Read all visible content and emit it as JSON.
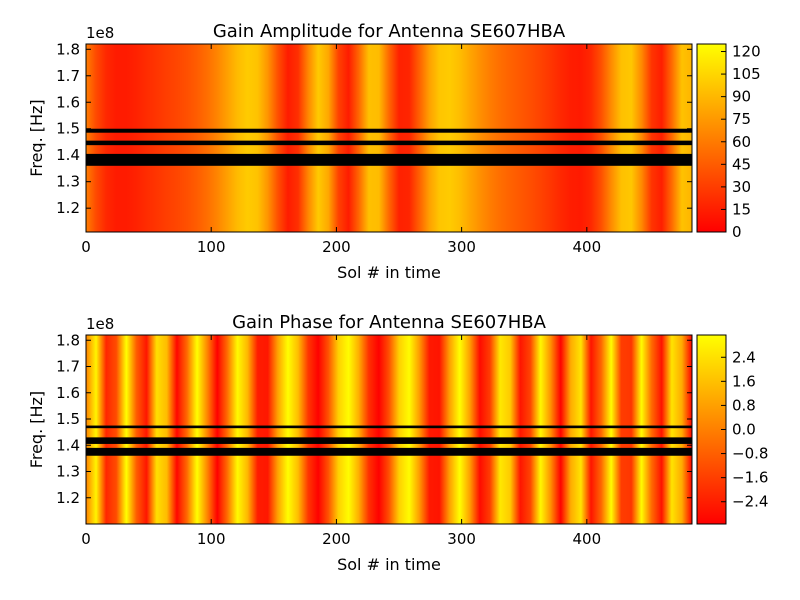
{
  "chart_data": [
    {
      "type": "heatmap",
      "title": "Gain Amplitude for Antenna SE607HBA",
      "xlabel": "Sol # in time",
      "ylabel": "Freq. [Hz]",
      "y_offset_label": "1e8",
      "xlim": [
        0,
        484
      ],
      "ylim": [
        1.11,
        1.82
      ],
      "x_ticks": [
        0,
        100,
        200,
        300,
        400
      ],
      "x_tick_labels": [
        "0",
        "100",
        "200",
        "300",
        "400"
      ],
      "y_ticks": [
        1.2,
        1.3,
        1.4,
        1.5,
        1.6,
        1.7,
        1.8
      ],
      "y_tick_labels": [
        "1.2",
        "1.3",
        "1.4",
        "1.5",
        "1.6",
        "1.7",
        "1.8"
      ],
      "colormap": "autumn",
      "colormap_stops": [
        "#ff0000",
        "#ffff00"
      ],
      "flagged_color": "#000000",
      "flagged_bands": [
        [
          1.485,
          1.5
        ],
        [
          1.438,
          1.455
        ],
        [
          1.36,
          1.405
        ]
      ],
      "clim": [
        0,
        125
      ],
      "colorbar_ticks": [
        0,
        15,
        30,
        45,
        60,
        75,
        90,
        105,
        120
      ],
      "colorbar_tick_labels": [
        "0",
        "15",
        "30",
        "45",
        "60",
        "75",
        "90",
        "105",
        "120"
      ]
    },
    {
      "type": "heatmap",
      "title": "Gain Phase for Antenna SE607HBA",
      "xlabel": "Sol # in time",
      "ylabel": "Freq. [Hz]",
      "y_offset_label": "1e8",
      "xlim": [
        0,
        484
      ],
      "ylim": [
        1.1,
        1.82
      ],
      "x_ticks": [
        0,
        100,
        200,
        300,
        400
      ],
      "x_tick_labels": [
        "0",
        "100",
        "200",
        "300",
        "400"
      ],
      "y_ticks": [
        1.2,
        1.3,
        1.4,
        1.5,
        1.6,
        1.7,
        1.8
      ],
      "y_tick_labels": [
        "1.2",
        "1.3",
        "1.4",
        "1.5",
        "1.6",
        "1.7",
        "1.8"
      ],
      "colormap": "autumn",
      "colormap_stops": [
        "#ff0000",
        "#ffff00"
      ],
      "flagged_color": "#000000",
      "flagged_bands": [
        [
          1.465,
          1.475
        ],
        [
          1.405,
          1.43
        ],
        [
          1.36,
          1.39
        ]
      ],
      "clim": [
        -3.14,
        3.14
      ],
      "colorbar_ticks": [
        -2.4,
        -1.6,
        -0.8,
        0.0,
        0.8,
        1.6,
        2.4
      ],
      "colorbar_tick_labels": [
        "−2.4",
        "−1.6",
        "−0.8",
        "0.0",
        "0.8",
        "1.6",
        "2.4"
      ]
    }
  ]
}
